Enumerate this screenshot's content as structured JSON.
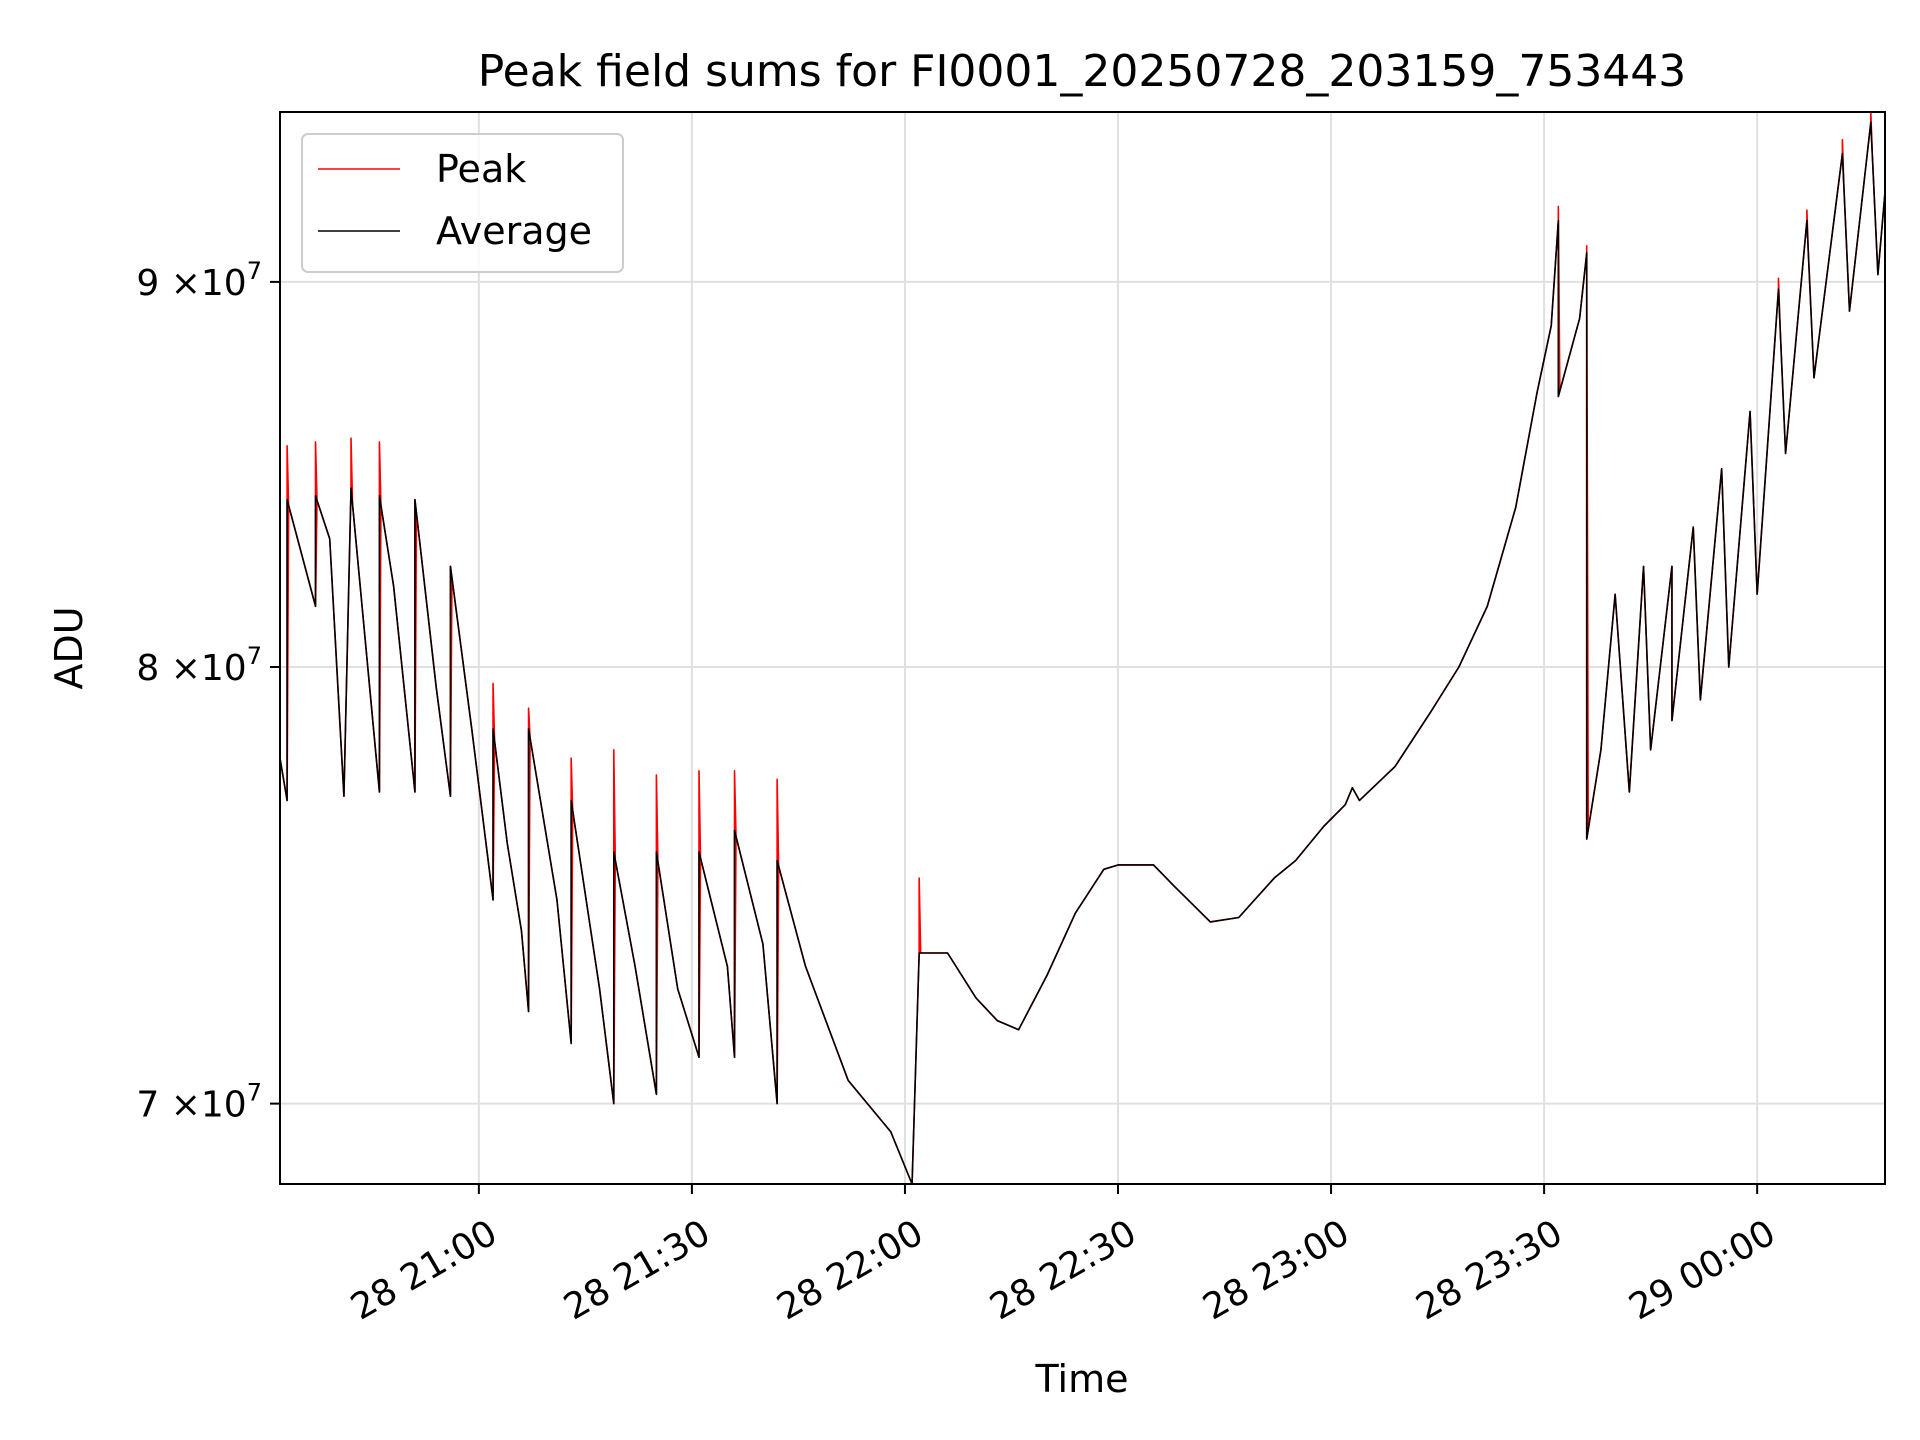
{
  "chart_data": {
    "type": "line",
    "title": "Peak field sums for FI0001_20250728_203159_753443",
    "xlabel": "Time",
    "ylabel": "ADU",
    "yscale": "log",
    "grid": true,
    "legend_position": "upper left",
    "xlim": [
      "2025-07-28 20:32",
      "2025-07-29 00:18"
    ],
    "ylim": [
      68300000,
      94800000
    ],
    "x_ticks": [
      {
        "value": "2025-07-28 21:00",
        "label": "28 21:00"
      },
      {
        "value": "2025-07-28 21:30",
        "label": "28 21:30"
      },
      {
        "value": "2025-07-28 22:00",
        "label": "28 22:00"
      },
      {
        "value": "2025-07-28 22:30",
        "label": "28 22:30"
      },
      {
        "value": "2025-07-28 23:00",
        "label": "28 23:00"
      },
      {
        "value": "2025-07-28 23:30",
        "label": "28 23:30"
      },
      {
        "value": "2025-07-29 00:00",
        "label": "29 00:00"
      }
    ],
    "y_ticks": [
      {
        "value": 70000000,
        "mantissa": "7",
        "exponent": "7"
      },
      {
        "value": 80000000,
        "mantissa": "8",
        "exponent": "7"
      },
      {
        "value": 90000000,
        "mantissa": "9",
        "exponent": "7"
      }
    ],
    "tick_times_label": "×10",
    "series": [
      {
        "name": "Average",
        "color": "#000000",
        "points": [
          [
            "2025-07-28 20:32",
            77800000
          ],
          [
            "2025-07-28 20:33",
            76800000
          ],
          [
            "2025-07-28 20:33",
            84200000
          ],
          [
            "2025-07-28 20:37",
            81500000
          ],
          [
            "2025-07-28 20:37",
            84300000
          ],
          [
            "2025-07-28 20:39",
            83200000
          ],
          [
            "2025-07-28 20:41",
            76900000
          ],
          [
            "2025-07-28 20:42",
            84500000
          ],
          [
            "2025-07-28 20:46",
            77000000
          ],
          [
            "2025-07-28 20:46",
            84300000
          ],
          [
            "2025-07-28 20:48",
            82000000
          ],
          [
            "2025-07-28 20:51",
            77000000
          ],
          [
            "2025-07-28 20:51",
            84200000
          ],
          [
            "2025-07-28 20:54",
            79500000
          ],
          [
            "2025-07-28 20:56",
            76900000
          ],
          [
            "2025-07-28 20:56",
            82500000
          ],
          [
            "2025-07-28 20:59",
            78500000
          ],
          [
            "2025-07-28 21:02",
            74500000
          ],
          [
            "2025-07-28 21:02",
            78500000
          ],
          [
            "2025-07-28 21:04",
            75800000
          ],
          [
            "2025-07-28 21:06",
            73800000
          ],
          [
            "2025-07-28 21:07",
            72000000
          ],
          [
            "2025-07-28 21:07",
            78500000
          ],
          [
            "2025-07-28 21:11",
            74500000
          ],
          [
            "2025-07-28 21:13",
            71300000
          ],
          [
            "2025-07-28 21:13",
            76800000
          ],
          [
            "2025-07-28 21:17",
            72500000
          ],
          [
            "2025-07-28 21:19",
            70000000
          ],
          [
            "2025-07-28 21:19",
            75600000
          ],
          [
            "2025-07-28 21:22",
            73000000
          ],
          [
            "2025-07-28 21:25",
            70200000
          ],
          [
            "2025-07-28 21:25",
            75600000
          ],
          [
            "2025-07-28 21:28",
            72500000
          ],
          [
            "2025-07-28 21:31",
            71000000
          ],
          [
            "2025-07-28 21:31",
            75600000
          ],
          [
            "2025-07-28 21:35",
            73000000
          ],
          [
            "2025-07-28 21:36",
            71000000
          ],
          [
            "2025-07-28 21:36",
            76100000
          ],
          [
            "2025-07-28 21:40",
            73500000
          ],
          [
            "2025-07-28 21:42",
            70000000
          ],
          [
            "2025-07-28 21:42",
            75400000
          ],
          [
            "2025-07-28 21:46",
            73000000
          ],
          [
            "2025-07-28 21:52",
            70500000
          ],
          [
            "2025-07-28 21:58",
            69400000
          ],
          [
            "2025-07-28 22:01",
            68300000
          ],
          [
            "2025-07-28 22:02",
            73300000
          ],
          [
            "2025-07-28 22:06",
            73300000
          ],
          [
            "2025-07-28 22:10",
            72300000
          ],
          [
            "2025-07-28 22:13",
            71800000
          ],
          [
            "2025-07-28 22:16",
            71600000
          ],
          [
            "2025-07-28 22:20",
            72800000
          ],
          [
            "2025-07-28 22:24",
            74200000
          ],
          [
            "2025-07-28 22:28",
            75200000
          ],
          [
            "2025-07-28 22:30",
            75300000
          ],
          [
            "2025-07-28 22:35",
            75300000
          ],
          [
            "2025-07-28 22:38",
            74800000
          ],
          [
            "2025-07-28 22:43",
            74000000
          ],
          [
            "2025-07-28 22:47",
            74100000
          ],
          [
            "2025-07-28 22:52",
            75000000
          ],
          [
            "2025-07-28 22:55",
            75400000
          ],
          [
            "2025-07-28 22:59",
            76200000
          ],
          [
            "2025-07-28 23:02",
            76700000
          ],
          [
            "2025-07-28 23:03",
            77100000
          ],
          [
            "2025-07-28 23:04",
            76800000
          ],
          [
            "2025-07-28 23:09",
            77600000
          ],
          [
            "2025-07-28 23:14",
            78900000
          ],
          [
            "2025-07-28 23:18",
            80000000
          ],
          [
            "2025-07-28 23:22",
            81500000
          ],
          [
            "2025-07-28 23:26",
            84000000
          ],
          [
            "2025-07-28 23:29",
            87000000
          ],
          [
            "2025-07-28 23:31",
            88800000
          ],
          [
            "2025-07-28 23:32",
            91700000
          ],
          [
            "2025-07-28 23:32",
            86900000
          ],
          [
            "2025-07-28 23:35",
            89000000
          ],
          [
            "2025-07-28 23:36",
            90800000
          ],
          [
            "2025-07-28 23:36",
            75900000
          ],
          [
            "2025-07-28 23:38",
            78000000
          ],
          [
            "2025-07-28 23:40",
            81800000
          ],
          [
            "2025-07-28 23:42",
            77000000
          ],
          [
            "2025-07-28 23:44",
            82500000
          ],
          [
            "2025-07-28 23:45",
            78000000
          ],
          [
            "2025-07-28 23:48",
            82500000
          ],
          [
            "2025-07-28 23:48",
            78700000
          ],
          [
            "2025-07-28 23:51",
            83500000
          ],
          [
            "2025-07-28 23:52",
            79200000
          ],
          [
            "2025-07-28 23:55",
            85000000
          ],
          [
            "2025-07-28 23:56",
            80000000
          ],
          [
            "2025-07-28 23:59",
            86500000
          ],
          [
            "2025-07-29 00:00",
            81800000
          ],
          [
            "2025-07-29 00:03",
            89800000
          ],
          [
            "2025-07-29 00:04",
            85400000
          ],
          [
            "2025-07-29 00:07",
            91700000
          ],
          [
            "2025-07-29 00:08",
            87400000
          ],
          [
            "2025-07-29 00:12",
            93600000
          ],
          [
            "2025-07-29 00:13",
            89200000
          ],
          [
            "2025-07-29 00:16",
            94500000
          ],
          [
            "2025-07-29 00:17",
            90200000
          ],
          [
            "2025-07-29 00:18",
            92500000
          ]
        ]
      },
      {
        "name": "Peak",
        "color": "#ff0000",
        "spikes": [
          [
            "2025-07-28 20:33",
            85600000
          ],
          [
            "2025-07-28 20:37",
            85700000
          ],
          [
            "2025-07-28 20:42",
            85800000
          ],
          [
            "2025-07-28 20:46",
            85700000
          ],
          [
            "2025-07-28 20:51",
            83100000
          ],
          [
            "2025-07-28 20:56",
            79700000
          ],
          [
            "2025-07-28 21:02",
            79600000
          ],
          [
            "2025-07-28 21:07",
            79000000
          ],
          [
            "2025-07-28 21:13",
            77800000
          ],
          [
            "2025-07-28 21:19",
            78000000
          ],
          [
            "2025-07-28 21:25",
            77400000
          ],
          [
            "2025-07-28 21:31",
            77500000
          ],
          [
            "2025-07-28 21:36",
            77500000
          ],
          [
            "2025-07-28 21:42",
            77300000
          ],
          [
            "2025-07-28 22:02",
            75000000
          ],
          [
            "2025-07-28 23:32",
            92100000
          ],
          [
            "2025-07-28 23:36",
            91000000
          ],
          [
            "2025-07-29 00:03",
            90100000
          ],
          [
            "2025-07-29 00:07",
            92000000
          ],
          [
            "2025-07-29 00:12",
            94000000
          ],
          [
            "2025-07-29 00:16",
            94800000
          ]
        ]
      }
    ]
  }
}
